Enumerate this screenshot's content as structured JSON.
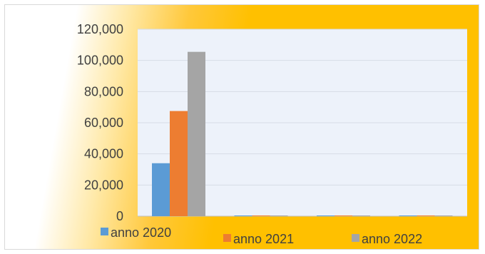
{
  "chart_data": {
    "type": "bar",
    "categories": [
      "",
      "",
      "",
      ""
    ],
    "series": [
      {
        "name": "anno 2020",
        "values": [
          34000,
          300,
          300,
          300
        ]
      },
      {
        "name": "anno 2021",
        "values": [
          67500,
          300,
          300,
          300
        ]
      },
      {
        "name": "anno 2022",
        "values": [
          105500,
          300,
          300,
          300
        ]
      }
    ],
    "ylim": [
      0,
      120000
    ],
    "yticks": [
      0,
      20000,
      40000,
      60000,
      80000,
      100000,
      120000
    ],
    "ytick_labels": [
      "0",
      "20,000",
      "40,000",
      "60,000",
      "80,000",
      "100,000",
      "120,000"
    ],
    "title": "",
    "xlabel": "",
    "ylabel": "",
    "grid": true,
    "legend_placement": "bottom",
    "colors": [
      "#5b9bd5",
      "#ed7d31",
      "#a5a5a5"
    ],
    "plot_background": "#edf2fa",
    "frame_background": "#ffc000"
  }
}
